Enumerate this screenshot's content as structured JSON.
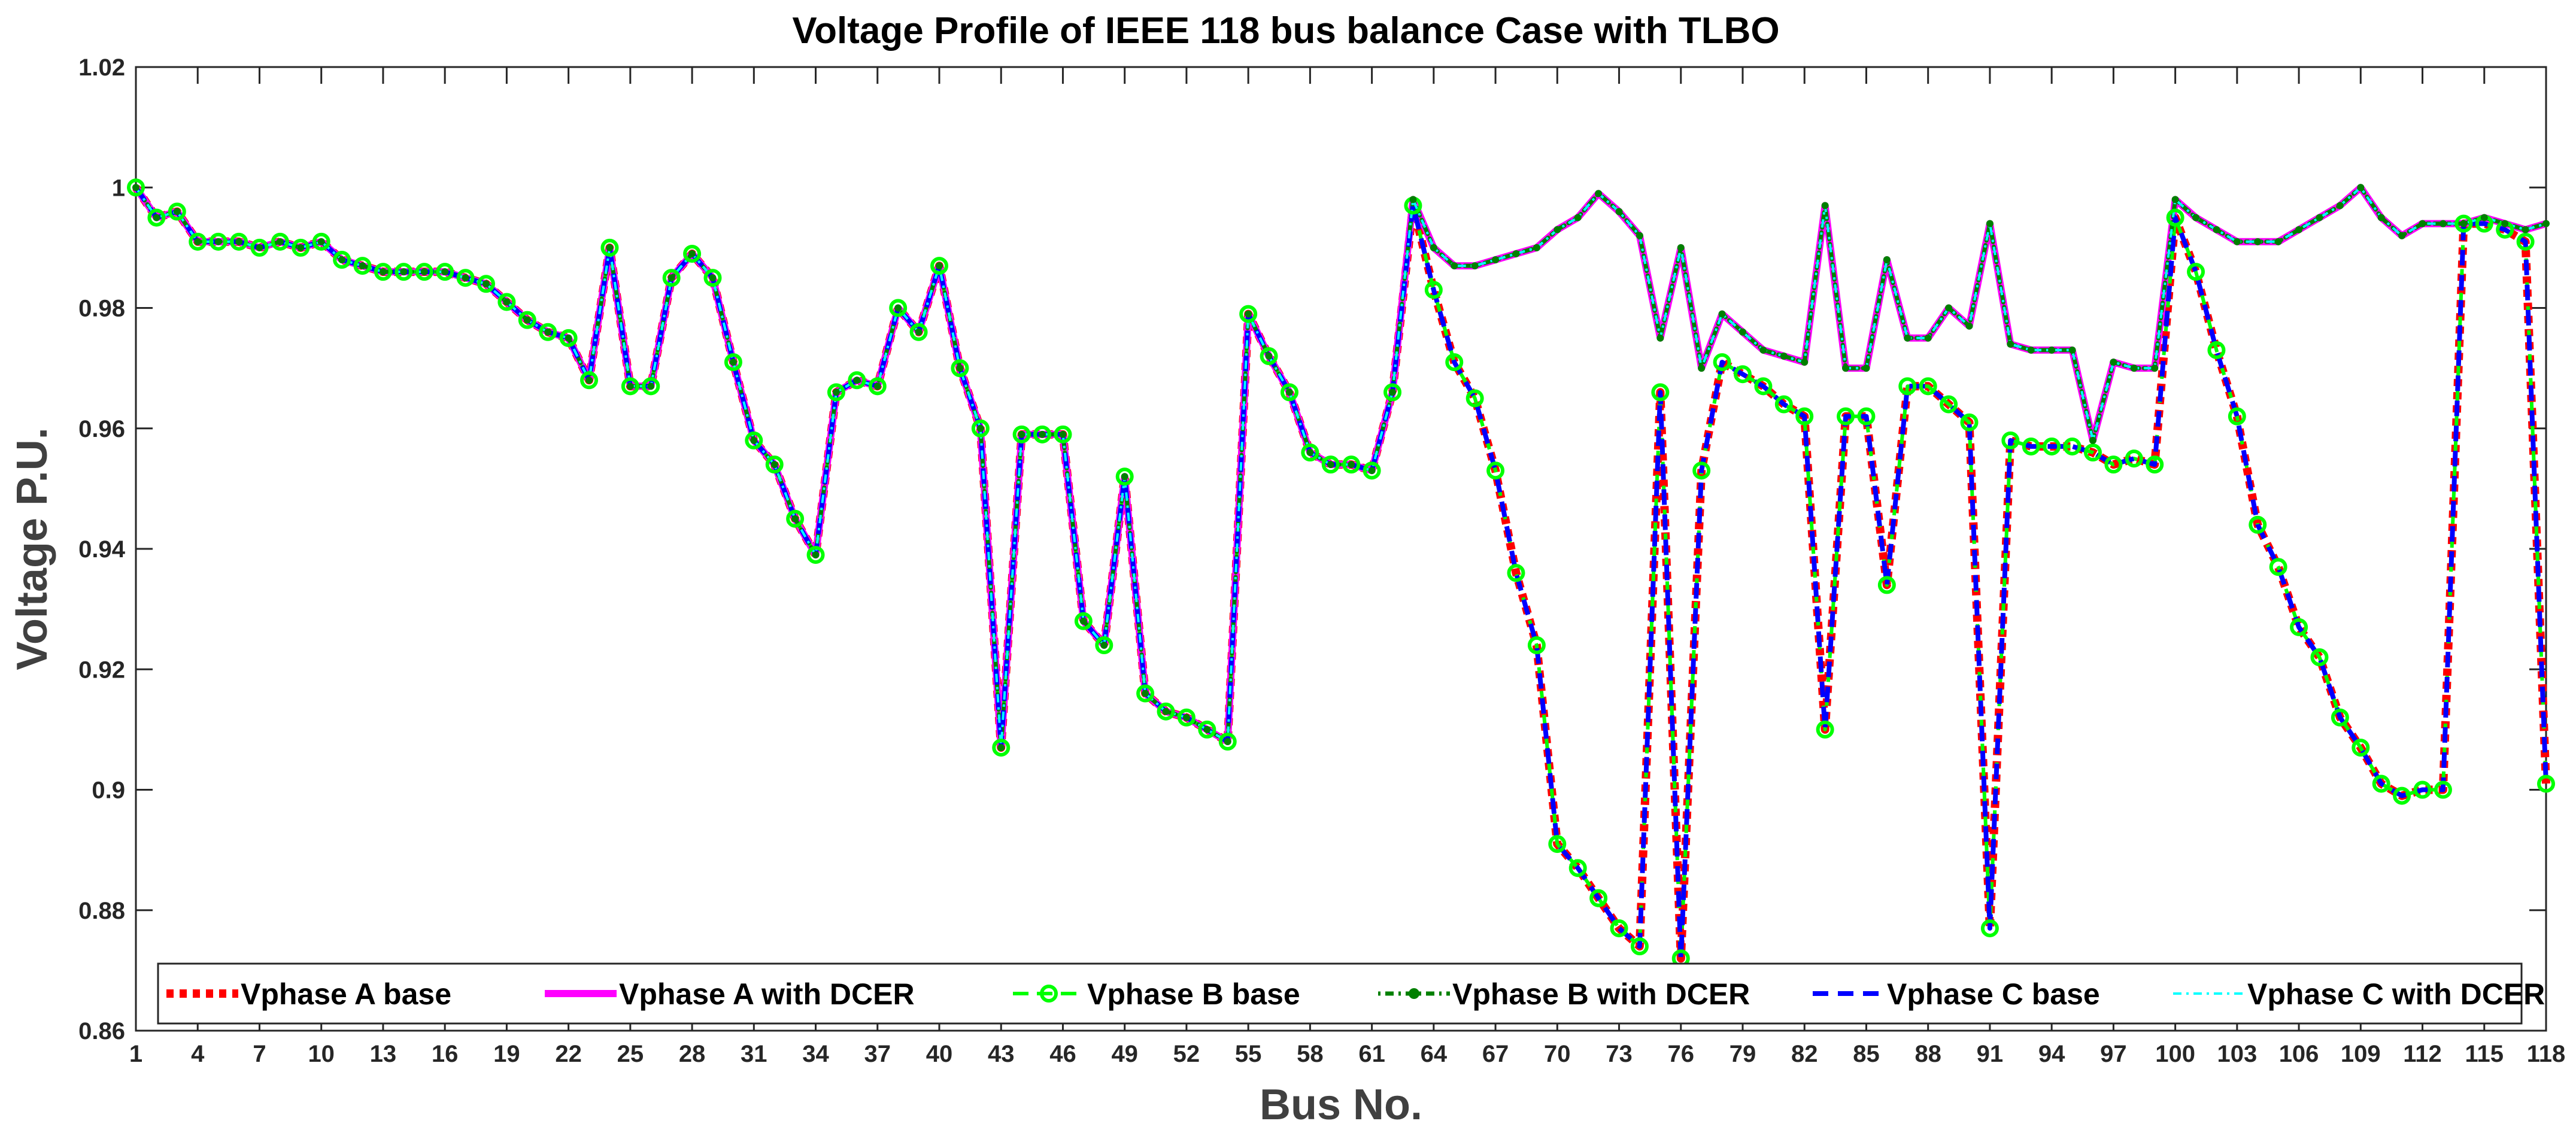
{
  "chart_data": {
    "type": "line",
    "title": "Voltage Profile of IEEE 118 bus balance Case with TLBO",
    "xlabel": "Bus No.",
    "ylabel": "Voltage P.U.",
    "xlim": [
      1,
      118
    ],
    "ylim": [
      0.86,
      1.02
    ],
    "xticks": [
      1,
      4,
      7,
      10,
      13,
      16,
      19,
      22,
      25,
      28,
      31,
      34,
      37,
      40,
      43,
      46,
      49,
      52,
      55,
      58,
      61,
      64,
      67,
      70,
      73,
      76,
      79,
      82,
      85,
      88,
      91,
      94,
      97,
      100,
      103,
      106,
      109,
      112,
      115,
      118
    ],
    "yticks": [
      0.86,
      0.88,
      0.9,
      0.92,
      0.94,
      0.96,
      0.98,
      1,
      1.02
    ],
    "ytick_labels": [
      "0.86",
      "0.88",
      "0.9",
      "0.92",
      "0.94",
      "0.96",
      "0.98",
      "1",
      "1.02"
    ],
    "grid": false,
    "legend_position": "bottom",
    "x": [
      1,
      2,
      3,
      4,
      5,
      6,
      7,
      8,
      9,
      10,
      11,
      12,
      13,
      14,
      15,
      16,
      17,
      18,
      19,
      20,
      21,
      22,
      23,
      24,
      25,
      26,
      27,
      28,
      29,
      30,
      31,
      32,
      33,
      34,
      35,
      36,
      37,
      38,
      39,
      40,
      41,
      42,
      43,
      44,
      45,
      46,
      47,
      48,
      49,
      50,
      51,
      52,
      53,
      54,
      55,
      56,
      57,
      58,
      59,
      60,
      61,
      62,
      63,
      64,
      65,
      66,
      67,
      68,
      69,
      70,
      71,
      72,
      73,
      74,
      75,
      76,
      77,
      78,
      79,
      80,
      81,
      82,
      83,
      84,
      85,
      86,
      87,
      88,
      89,
      90,
      91,
      92,
      93,
      94,
      95,
      96,
      97,
      98,
      99,
      100,
      101,
      102,
      103,
      104,
      105,
      106,
      107,
      108,
      109,
      110,
      111,
      112,
      113,
      114,
      115,
      116,
      117,
      118
    ],
    "colors": {
      "a_base": "#ff0000",
      "a_dcer": "#ff00ff",
      "b_base": "#00ff00",
      "b_dcer": "#008000",
      "c_base": "#0000ff",
      "c_dcer": "#00ffff",
      "axis": "#262626"
    },
    "series": [
      {
        "name": "Vphase A base",
        "key": "a_base",
        "values": [
          1.0,
          0.995,
          0.996,
          0.991,
          0.991,
          0.991,
          0.99,
          0.991,
          0.99,
          0.991,
          0.988,
          0.987,
          0.986,
          0.986,
          0.986,
          0.986,
          0.985,
          0.984,
          0.981,
          0.978,
          0.976,
          0.975,
          0.968,
          0.99,
          0.967,
          0.967,
          0.985,
          0.989,
          0.985,
          0.971,
          0.958,
          0.954,
          0.945,
          0.939,
          0.966,
          0.968,
          0.967,
          0.98,
          0.976,
          0.987,
          0.97,
          0.96,
          0.907,
          0.959,
          0.959,
          0.959,
          0.928,
          0.924,
          0.952,
          0.916,
          0.913,
          0.912,
          0.91,
          0.908,
          0.979,
          0.972,
          0.966,
          0.956,
          0.954,
          0.954,
          0.953,
          0.966,
          0.997,
          0.983,
          0.971,
          0.965,
          0.953,
          0.936,
          0.924,
          0.891,
          0.887,
          0.882,
          0.877,
          0.874,
          0.966,
          0.872,
          0.953,
          0.971,
          0.969,
          0.967,
          0.964,
          0.962,
          0.91,
          0.962,
          0.962,
          0.934,
          0.967,
          0.967,
          0.964,
          0.961,
          0.877,
          0.958,
          0.957,
          0.957,
          0.957,
          0.956,
          0.954,
          0.955,
          0.954,
          0.995,
          0.986,
          0.973,
          0.962,
          0.944,
          0.937,
          0.927,
          0.922,
          0.912,
          0.907,
          0.901,
          0.899,
          0.9,
          0.9,
          0.994,
          0.994,
          0.993,
          0.991,
          0.901
        ]
      },
      {
        "name": "Vphase A with DCER",
        "key": "a_dcer",
        "values": [
          1.0,
          0.995,
          0.996,
          0.991,
          0.991,
          0.991,
          0.99,
          0.991,
          0.99,
          0.991,
          0.988,
          0.987,
          0.986,
          0.986,
          0.986,
          0.986,
          0.985,
          0.984,
          0.981,
          0.978,
          0.976,
          0.975,
          0.968,
          0.99,
          0.967,
          0.967,
          0.985,
          0.989,
          0.985,
          0.971,
          0.958,
          0.954,
          0.945,
          0.939,
          0.966,
          0.968,
          0.967,
          0.98,
          0.976,
          0.987,
          0.97,
          0.96,
          0.907,
          0.959,
          0.959,
          0.959,
          0.928,
          0.924,
          0.952,
          0.916,
          0.913,
          0.912,
          0.91,
          0.908,
          0.979,
          0.972,
          0.966,
          0.956,
          0.954,
          0.954,
          0.953,
          0.966,
          0.998,
          0.99,
          0.987,
          0.987,
          0.988,
          0.989,
          0.99,
          0.993,
          0.995,
          0.999,
          0.996,
          0.992,
          0.975,
          0.99,
          0.97,
          0.979,
          0.976,
          0.973,
          0.972,
          0.971,
          0.997,
          0.97,
          0.97,
          0.988,
          0.975,
          0.975,
          0.98,
          0.977,
          0.994,
          0.974,
          0.973,
          0.973,
          0.973,
          0.958,
          0.971,
          0.97,
          0.97,
          0.998,
          0.995,
          0.993,
          0.991,
          0.991,
          0.991,
          0.993,
          0.995,
          0.997,
          1.0,
          0.995,
          0.992,
          0.994,
          0.994,
          0.994,
          0.995,
          0.994,
          0.993,
          0.994
        ]
      },
      {
        "name": "Vphase B base",
        "key": "b_base",
        "values": [
          1.0,
          0.995,
          0.996,
          0.991,
          0.991,
          0.991,
          0.99,
          0.991,
          0.99,
          0.991,
          0.988,
          0.987,
          0.986,
          0.986,
          0.986,
          0.986,
          0.985,
          0.984,
          0.981,
          0.978,
          0.976,
          0.975,
          0.968,
          0.99,
          0.967,
          0.967,
          0.985,
          0.989,
          0.985,
          0.971,
          0.958,
          0.954,
          0.945,
          0.939,
          0.966,
          0.968,
          0.967,
          0.98,
          0.976,
          0.987,
          0.97,
          0.96,
          0.907,
          0.959,
          0.959,
          0.959,
          0.928,
          0.924,
          0.952,
          0.916,
          0.913,
          0.912,
          0.91,
          0.908,
          0.979,
          0.972,
          0.966,
          0.956,
          0.954,
          0.954,
          0.953,
          0.966,
          0.997,
          0.983,
          0.971,
          0.965,
          0.953,
          0.936,
          0.924,
          0.891,
          0.887,
          0.882,
          0.877,
          0.874,
          0.966,
          0.872,
          0.953,
          0.971,
          0.969,
          0.967,
          0.964,
          0.962,
          0.91,
          0.962,
          0.962,
          0.934,
          0.967,
          0.967,
          0.964,
          0.961,
          0.877,
          0.958,
          0.957,
          0.957,
          0.957,
          0.956,
          0.954,
          0.955,
          0.954,
          0.995,
          0.986,
          0.973,
          0.962,
          0.944,
          0.937,
          0.927,
          0.922,
          0.912,
          0.907,
          0.901,
          0.899,
          0.9,
          0.9,
          0.994,
          0.994,
          0.993,
          0.991,
          0.901
        ]
      },
      {
        "name": "Vphase B with DCER",
        "key": "b_dcer",
        "values": [
          1.0,
          0.995,
          0.996,
          0.991,
          0.991,
          0.991,
          0.99,
          0.991,
          0.99,
          0.991,
          0.988,
          0.987,
          0.986,
          0.986,
          0.986,
          0.986,
          0.985,
          0.984,
          0.981,
          0.978,
          0.976,
          0.975,
          0.968,
          0.99,
          0.967,
          0.967,
          0.985,
          0.989,
          0.985,
          0.971,
          0.958,
          0.954,
          0.945,
          0.939,
          0.966,
          0.968,
          0.967,
          0.98,
          0.976,
          0.987,
          0.97,
          0.96,
          0.907,
          0.959,
          0.959,
          0.959,
          0.928,
          0.924,
          0.952,
          0.916,
          0.913,
          0.912,
          0.91,
          0.908,
          0.979,
          0.972,
          0.966,
          0.956,
          0.954,
          0.954,
          0.953,
          0.966,
          0.998,
          0.99,
          0.987,
          0.987,
          0.988,
          0.989,
          0.99,
          0.993,
          0.995,
          0.999,
          0.996,
          0.992,
          0.975,
          0.99,
          0.97,
          0.979,
          0.976,
          0.973,
          0.972,
          0.971,
          0.997,
          0.97,
          0.97,
          0.988,
          0.975,
          0.975,
          0.98,
          0.977,
          0.994,
          0.974,
          0.973,
          0.973,
          0.973,
          0.958,
          0.971,
          0.97,
          0.97,
          0.998,
          0.995,
          0.993,
          0.991,
          0.991,
          0.991,
          0.993,
          0.995,
          0.997,
          1.0,
          0.995,
          0.992,
          0.994,
          0.994,
          0.994,
          0.995,
          0.994,
          0.993,
          0.994
        ]
      },
      {
        "name": "Vphase C base",
        "key": "c_base",
        "values": [
          1.0,
          0.995,
          0.996,
          0.991,
          0.991,
          0.991,
          0.99,
          0.991,
          0.99,
          0.991,
          0.988,
          0.987,
          0.986,
          0.986,
          0.986,
          0.986,
          0.985,
          0.984,
          0.981,
          0.978,
          0.976,
          0.975,
          0.968,
          0.99,
          0.967,
          0.967,
          0.985,
          0.989,
          0.985,
          0.971,
          0.958,
          0.954,
          0.945,
          0.939,
          0.966,
          0.968,
          0.967,
          0.98,
          0.976,
          0.987,
          0.97,
          0.96,
          0.907,
          0.959,
          0.959,
          0.959,
          0.928,
          0.924,
          0.952,
          0.916,
          0.913,
          0.912,
          0.91,
          0.908,
          0.979,
          0.972,
          0.966,
          0.956,
          0.954,
          0.954,
          0.953,
          0.966,
          0.997,
          0.983,
          0.971,
          0.965,
          0.953,
          0.936,
          0.924,
          0.891,
          0.887,
          0.882,
          0.877,
          0.874,
          0.966,
          0.872,
          0.953,
          0.971,
          0.969,
          0.967,
          0.964,
          0.962,
          0.91,
          0.962,
          0.962,
          0.934,
          0.967,
          0.967,
          0.964,
          0.961,
          0.877,
          0.958,
          0.957,
          0.957,
          0.957,
          0.956,
          0.954,
          0.955,
          0.954,
          0.995,
          0.986,
          0.973,
          0.962,
          0.944,
          0.937,
          0.927,
          0.922,
          0.912,
          0.907,
          0.901,
          0.899,
          0.9,
          0.9,
          0.994,
          0.994,
          0.993,
          0.991,
          0.901
        ]
      },
      {
        "name": "Vphase C with DCER",
        "key": "c_dcer",
        "values": [
          1.0,
          0.995,
          0.996,
          0.991,
          0.991,
          0.991,
          0.99,
          0.991,
          0.99,
          0.991,
          0.988,
          0.987,
          0.986,
          0.986,
          0.986,
          0.986,
          0.985,
          0.984,
          0.981,
          0.978,
          0.976,
          0.975,
          0.968,
          0.99,
          0.967,
          0.967,
          0.985,
          0.989,
          0.985,
          0.971,
          0.958,
          0.954,
          0.945,
          0.939,
          0.966,
          0.968,
          0.967,
          0.98,
          0.976,
          0.987,
          0.97,
          0.96,
          0.907,
          0.959,
          0.959,
          0.959,
          0.928,
          0.924,
          0.952,
          0.916,
          0.913,
          0.912,
          0.91,
          0.908,
          0.979,
          0.972,
          0.966,
          0.956,
          0.954,
          0.954,
          0.953,
          0.966,
          0.998,
          0.99,
          0.987,
          0.987,
          0.988,
          0.989,
          0.99,
          0.993,
          0.995,
          0.999,
          0.996,
          0.992,
          0.975,
          0.99,
          0.97,
          0.979,
          0.976,
          0.973,
          0.972,
          0.971,
          0.997,
          0.97,
          0.97,
          0.988,
          0.975,
          0.975,
          0.98,
          0.977,
          0.994,
          0.974,
          0.973,
          0.973,
          0.973,
          0.958,
          0.971,
          0.97,
          0.97,
          0.998,
          0.995,
          0.993,
          0.991,
          0.991,
          0.991,
          0.993,
          0.995,
          0.997,
          1.0,
          0.995,
          0.992,
          0.994,
          0.994,
          0.994,
          0.995,
          0.994,
          0.993,
          0.994
        ]
      }
    ]
  }
}
